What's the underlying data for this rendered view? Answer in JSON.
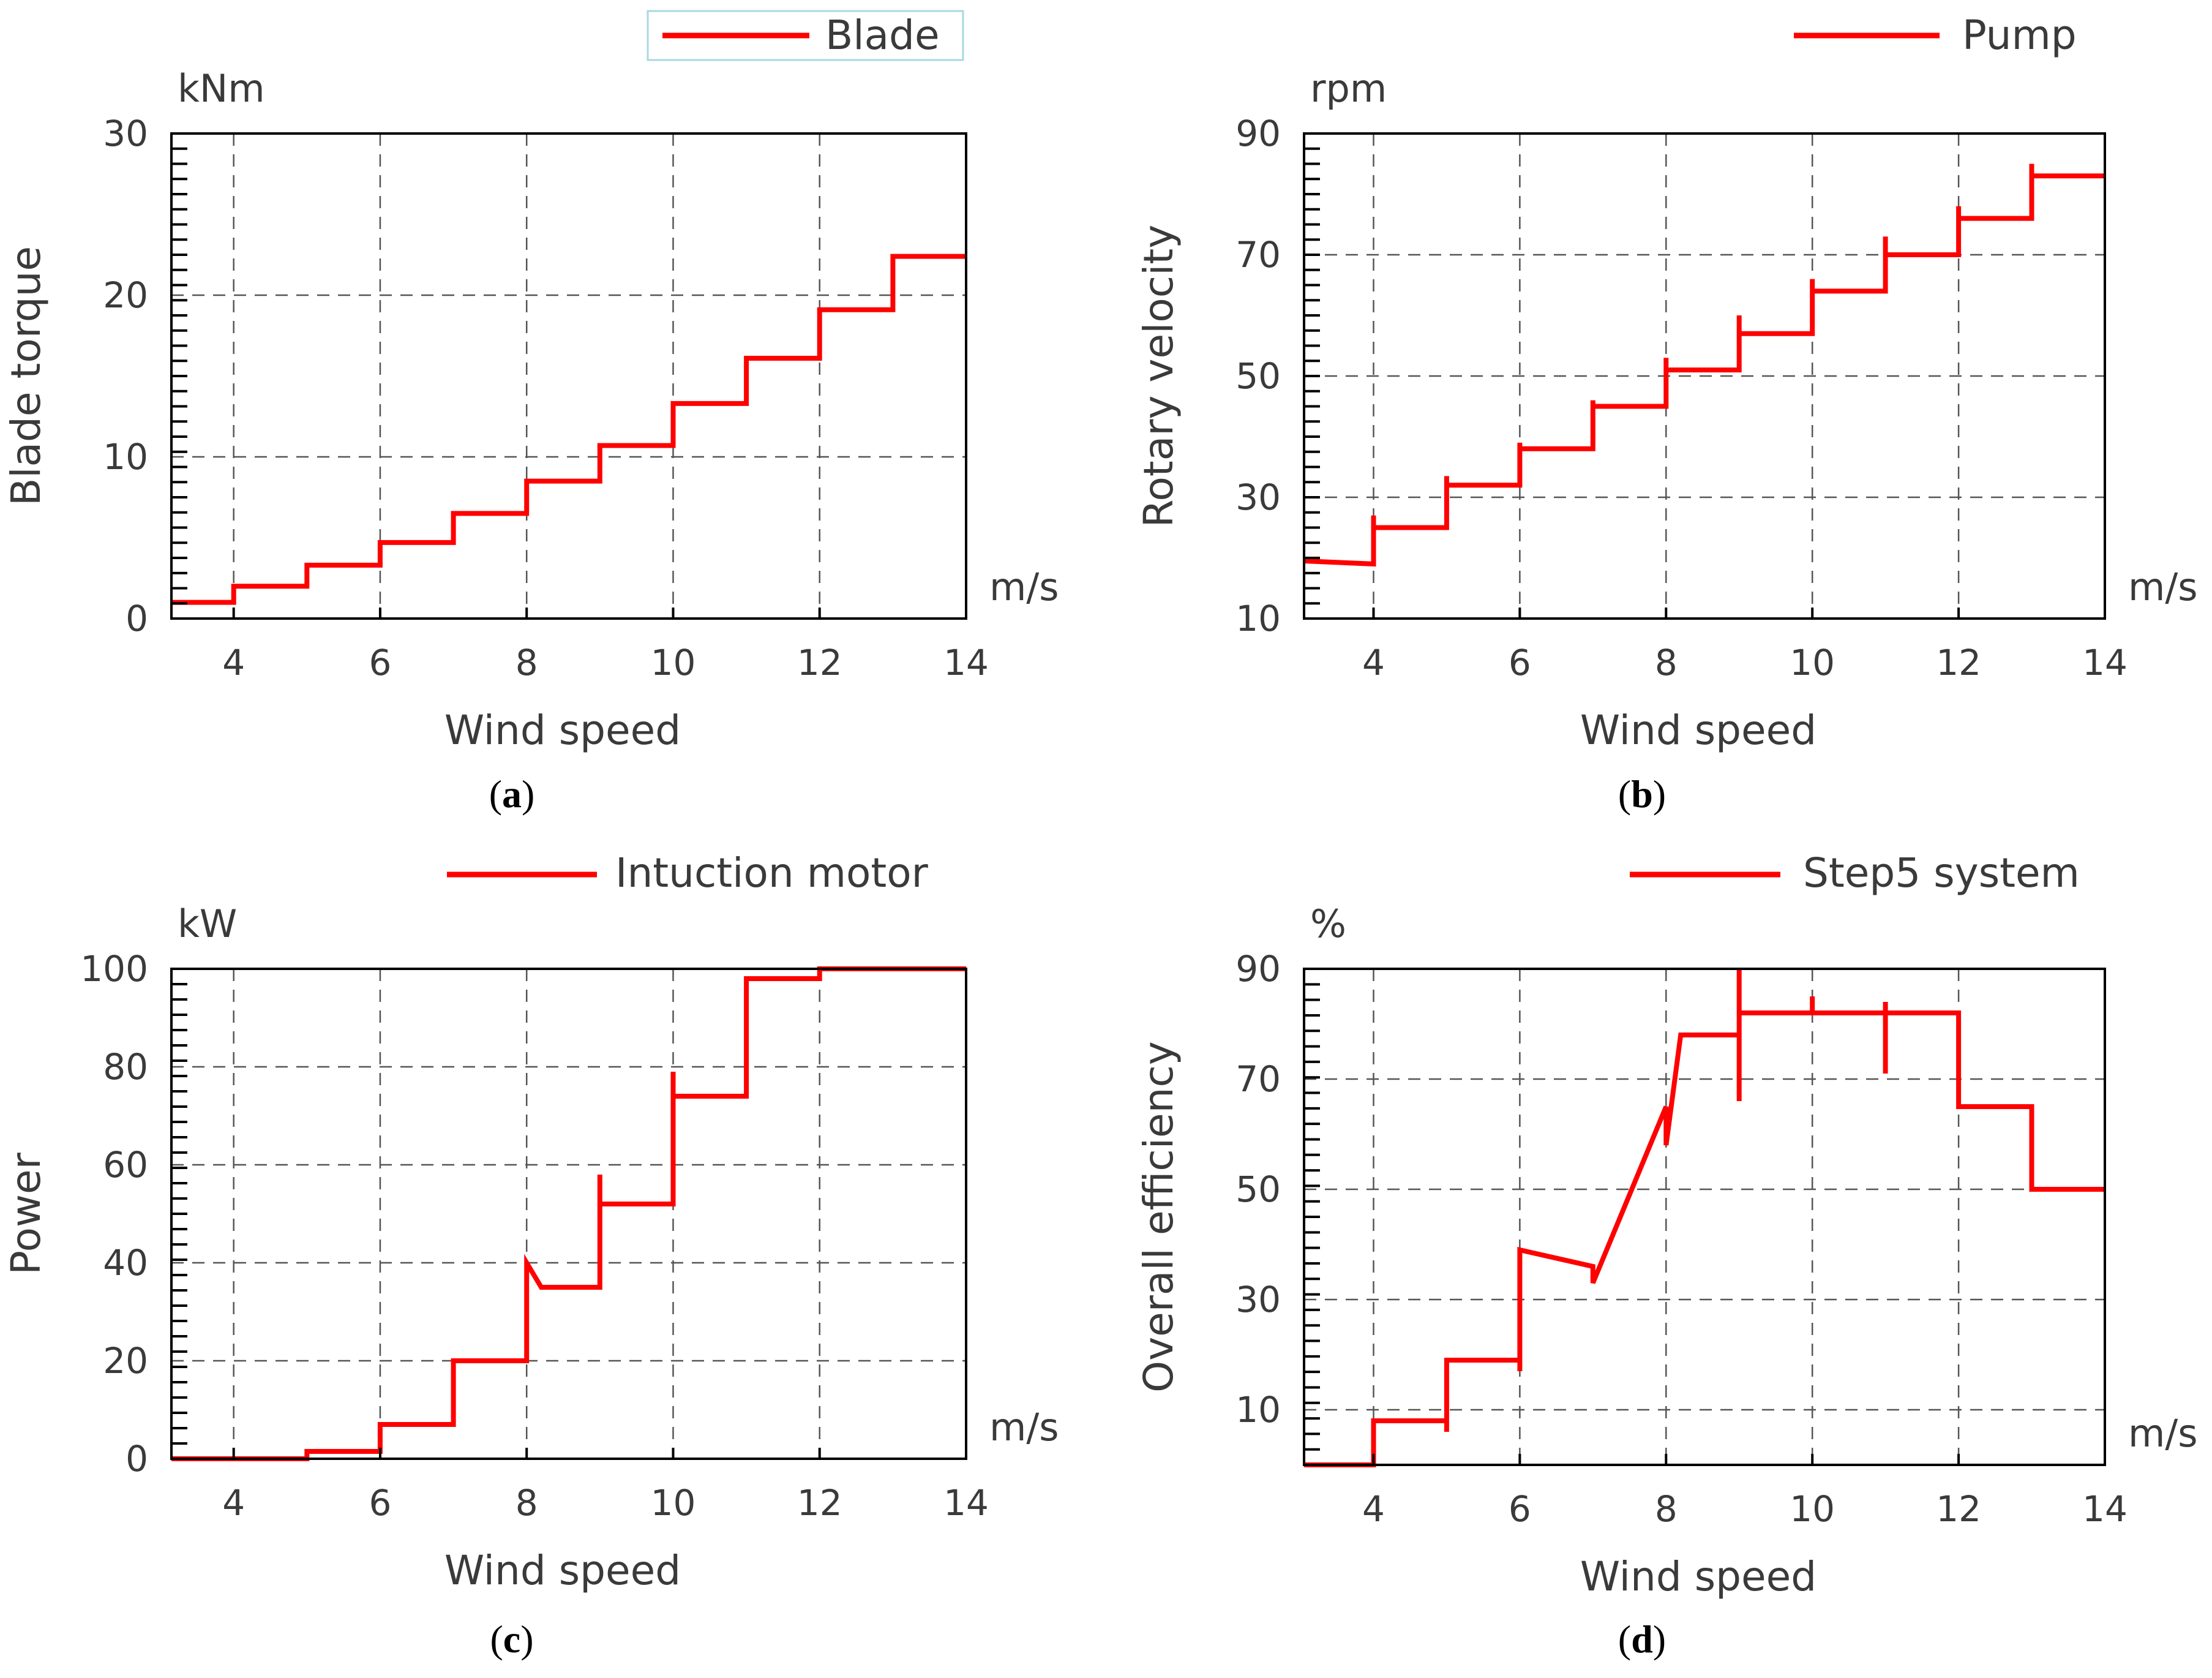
{
  "colors": {
    "series": "#ff0000",
    "axis": "#000000",
    "grid": "#555555",
    "text": "#3a3a3a"
  },
  "chart_data": [
    {
      "id": "a",
      "type": "line",
      "caption_label": "a",
      "legend": "Blade",
      "ylabel": "Blade torque",
      "xlabel": "Wind speed",
      "yunit": "kNm",
      "xunit": "m/s",
      "xlim": [
        3.15,
        14
      ],
      "ylim": [
        0,
        30
      ],
      "xticks": [
        4,
        6,
        8,
        10,
        12,
        14
      ],
      "yticks": [
        0,
        10,
        20,
        30
      ],
      "grid": true,
      "legend_boxed": true,
      "series": [
        {
          "name": "Blade",
          "x": [
            3.15,
            4,
            4,
            5,
            5,
            6,
            6,
            7,
            7,
            8,
            8,
            9,
            9,
            10,
            10,
            11,
            11,
            12,
            12,
            13,
            13,
            14
          ],
          "y": [
            1.0,
            1.0,
            2.0,
            2.0,
            3.3,
            3.3,
            4.7,
            4.7,
            6.5,
            6.5,
            8.5,
            8.5,
            10.7,
            10.7,
            13.3,
            13.3,
            16.1,
            16.1,
            19.1,
            19.1,
            22.4,
            22.4
          ]
        }
      ]
    },
    {
      "id": "b",
      "type": "line",
      "caption_label": "b",
      "legend": "Pump",
      "ylabel": "Rotary velocity",
      "xlabel": "Wind speed",
      "yunit": "rpm",
      "xunit": "m/s",
      "xlim": [
        3.05,
        14
      ],
      "ylim": [
        10,
        90
      ],
      "xticks": [
        4,
        6,
        8,
        10,
        12,
        14
      ],
      "yticks": [
        10,
        30,
        50,
        70,
        90
      ],
      "grid": true,
      "legend_boxed": false,
      "series": [
        {
          "name": "Pump",
          "x": [
            3.05,
            4,
            4,
            4,
            5,
            5,
            5,
            6,
            6,
            6,
            7,
            7,
            7,
            8,
            8,
            8,
            9,
            9,
            9,
            10,
            10,
            10,
            11,
            11,
            11,
            12,
            12,
            12,
            13,
            13,
            13,
            14
          ],
          "y": [
            19.5,
            19.0,
            27.0,
            25.0,
            25.0,
            33.5,
            32.0,
            32.0,
            39.0,
            38.0,
            38.0,
            46.0,
            45.0,
            45.0,
            53.0,
            51.0,
            51.0,
            60.0,
            57.0,
            57.0,
            66.0,
            64.0,
            64.0,
            73.0,
            70.0,
            70.0,
            78.0,
            76.0,
            76.0,
            85.0,
            83.0,
            83.0
          ]
        }
      ]
    },
    {
      "id": "c",
      "type": "line",
      "caption_label": "c",
      "legend": "Intuction motor",
      "ylabel": "Power",
      "xlabel": "Wind speed",
      "yunit": "kW",
      "xunit": "m/s",
      "xlim": [
        3.15,
        14
      ],
      "ylim": [
        0,
        100
      ],
      "xticks": [
        4,
        6,
        8,
        10,
        12,
        14
      ],
      "yticks": [
        0,
        20,
        40,
        60,
        80,
        100
      ],
      "grid": true,
      "legend_boxed": false,
      "series": [
        {
          "name": "Intuction motor",
          "x": [
            3.15,
            5,
            5,
            6,
            6,
            7,
            7,
            8,
            8,
            8.2,
            9,
            9,
            9,
            10,
            10,
            10,
            11,
            11,
            12,
            12,
            14
          ],
          "y": [
            0,
            0,
            1.5,
            1.5,
            7,
            7,
            20,
            20,
            40,
            35,
            35,
            58,
            52,
            52,
            79,
            74,
            74,
            98,
            98,
            100,
            100
          ]
        }
      ]
    },
    {
      "id": "d",
      "type": "line",
      "caption_label": "d",
      "legend": "Step5 system",
      "ylabel": "Overall efficiency",
      "xlabel": "Wind speed",
      "yunit": "%",
      "xunit": "m/s",
      "xlim": [
        3.05,
        14
      ],
      "ylim": [
        0,
        90
      ],
      "xticks": [
        4,
        6,
        8,
        10,
        12,
        14
      ],
      "yticks": [
        10,
        30,
        50,
        70,
        90
      ],
      "grid": true,
      "legend_boxed": false,
      "series": [
        {
          "name": "Step5 system",
          "x": [
            3.05,
            4,
            4,
            5,
            5,
            5,
            6,
            6,
            6,
            7,
            7,
            7,
            8,
            8,
            8,
            8.2,
            9,
            9,
            9,
            9,
            10,
            10,
            10,
            11,
            11,
            11,
            11,
            12,
            12,
            13,
            13,
            14
          ],
          "y": [
            0,
            0,
            8,
            8,
            6,
            19,
            19,
            17,
            39,
            36,
            36,
            33,
            65,
            65,
            58,
            78,
            78,
            66,
            90,
            82,
            82,
            85,
            82,
            82,
            71,
            84,
            82,
            82,
            65,
            65,
            50,
            50
          ]
        }
      ]
    }
  ]
}
